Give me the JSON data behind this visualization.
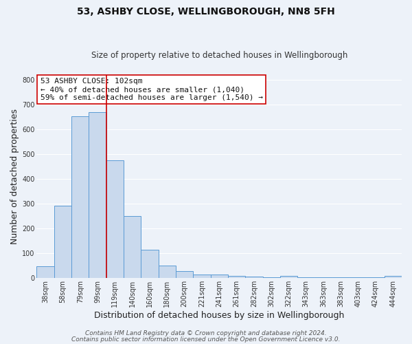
{
  "title": "53, ASHBY CLOSE, WELLINGBOROUGH, NN8 5FH",
  "subtitle": "Size of property relative to detached houses in Wellingborough",
  "xlabel": "Distribution of detached houses by size in Wellingborough",
  "ylabel": "Number of detached properties",
  "bar_labels": [
    "38sqm",
    "58sqm",
    "79sqm",
    "99sqm",
    "119sqm",
    "140sqm",
    "160sqm",
    "180sqm",
    "200sqm",
    "221sqm",
    "241sqm",
    "261sqm",
    "282sqm",
    "302sqm",
    "322sqm",
    "343sqm",
    "363sqm",
    "383sqm",
    "403sqm",
    "424sqm",
    "444sqm"
  ],
  "bar_values": [
    47,
    293,
    652,
    670,
    475,
    250,
    115,
    50,
    28,
    15,
    15,
    10,
    5,
    3,
    8,
    3,
    3,
    3,
    3,
    3,
    8
  ],
  "bar_color": "#c9d9ed",
  "bar_edge_color": "#5b9bd5",
  "vline_color": "#cc0000",
  "annotation_title": "53 ASHBY CLOSE: 102sqm",
  "annotation_line2": "← 40% of detached houses are smaller (1,040)",
  "annotation_line3": "59% of semi-detached houses are larger (1,540) →",
  "annotation_box_facecolor": "#ffffff",
  "annotation_box_edgecolor": "#cc0000",
  "ylim": [
    0,
    820
  ],
  "yticks": [
    0,
    100,
    200,
    300,
    400,
    500,
    600,
    700,
    800
  ],
  "footer_line1": "Contains HM Land Registry data © Crown copyright and database right 2024.",
  "footer_line2": "Contains public sector information licensed under the Open Government Licence v3.0.",
  "bg_color": "#edf2f9",
  "grid_color": "#ffffff",
  "title_fontsize": 10,
  "subtitle_fontsize": 8.5,
  "axis_label_fontsize": 9,
  "tick_fontsize": 7,
  "annotation_fontsize": 8,
  "footer_fontsize": 6.5
}
